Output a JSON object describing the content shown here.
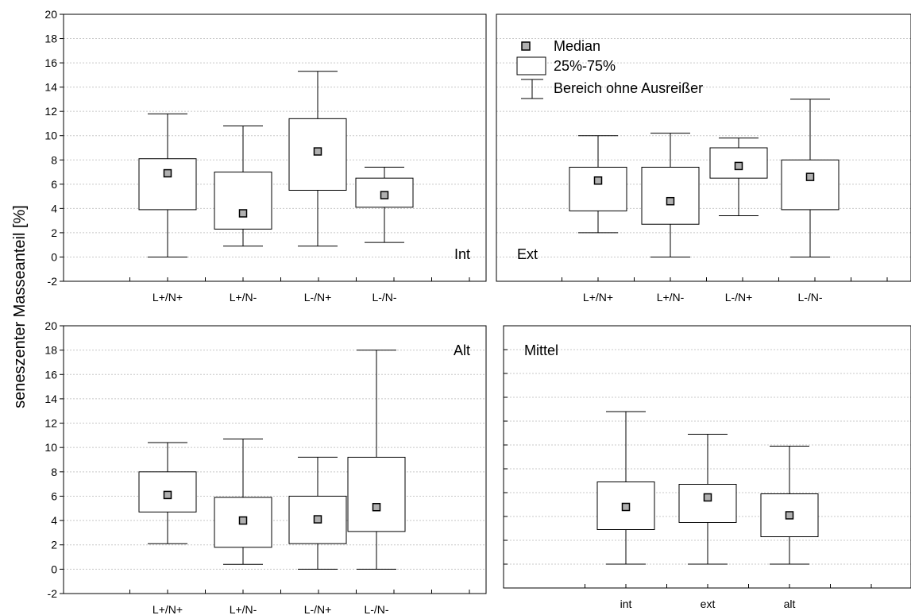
{
  "figure": {
    "ylabel": "seneszenter Masseanteil [%]"
  },
  "legend": {
    "median": "Median",
    "box": "25%-75%",
    "whisker": "Bereich ohne Ausreißer"
  },
  "chart_data": [
    {
      "type": "box",
      "label": "Int",
      "categories": [
        "L+/N+",
        "L+/N-",
        "L-/N+",
        "L-/N-"
      ],
      "ylim": [
        -2,
        20
      ],
      "yticks": [
        -2,
        0,
        2,
        4,
        6,
        8,
        10,
        12,
        14,
        16,
        18,
        20
      ],
      "grid": true,
      "boxes": [
        {
          "median": 6.9,
          "q1": 3.9,
          "q3": 8.1,
          "min": 0.0,
          "max": 11.8
        },
        {
          "median": 3.6,
          "q1": 2.3,
          "q3": 7.0,
          "min": 0.9,
          "max": 10.8
        },
        {
          "median": 8.7,
          "q1": 5.5,
          "q3": 11.4,
          "min": 0.9,
          "max": 15.3
        },
        {
          "median": 5.1,
          "q1": 4.1,
          "q3": 6.5,
          "min": 1.2,
          "max": 7.4
        }
      ]
    },
    {
      "type": "box",
      "label": "Ext",
      "categories": [
        "L+/N+",
        "L+/N-",
        "L-/N+",
        "L-/N-"
      ],
      "ylim": [
        -2,
        20
      ],
      "grid": true,
      "legend_position": "top-left",
      "boxes": [
        {
          "median": 6.3,
          "q1": 3.8,
          "q3": 7.4,
          "min": 2.0,
          "max": 10.0
        },
        {
          "median": 4.6,
          "q1": 2.7,
          "q3": 7.4,
          "min": 0.0,
          "max": 10.2
        },
        {
          "median": 7.5,
          "q1": 6.5,
          "q3": 9.0,
          "min": 3.4,
          "max": 9.8
        },
        {
          "median": 6.6,
          "q1": 3.9,
          "q3": 8.0,
          "min": 0.0,
          "max": 13.0
        }
      ]
    },
    {
      "type": "box",
      "label": "Alt",
      "categories": [
        "L+/N+",
        "L+/N-",
        "L-/N+",
        "L-/N-"
      ],
      "ylim": [
        -2,
        20
      ],
      "yticks": [
        -2,
        0,
        2,
        4,
        6,
        8,
        10,
        12,
        14,
        16,
        18,
        20
      ],
      "grid": true,
      "boxes": [
        {
          "median": 6.1,
          "q1": 4.7,
          "q3": 8.0,
          "min": 2.1,
          "max": 10.4
        },
        {
          "median": 4.0,
          "q1": 1.8,
          "q3": 5.9,
          "min": 0.4,
          "max": 10.7
        },
        {
          "median": 4.1,
          "q1": 2.1,
          "q3": 6.0,
          "min": 0.0,
          "max": 9.2
        },
        {
          "median": 5.1,
          "q1": 3.1,
          "q3": 9.2,
          "min": 0.0,
          "max": 18.0
        }
      ]
    },
    {
      "type": "box",
      "label": "Mittel",
      "categories": [
        "int",
        "ext",
        "alt"
      ],
      "ylim": [
        -2,
        20
      ],
      "grid": true,
      "boxes": [
        {
          "median": 4.8,
          "q1": 2.9,
          "q3": 6.9,
          "min": 0.0,
          "max": 12.8
        },
        {
          "median": 5.6,
          "q1": 3.5,
          "q3": 6.7,
          "min": 0.0,
          "max": 10.9
        },
        {
          "median": 4.1,
          "q1": 2.3,
          "q3": 5.9,
          "min": 0.0,
          "max": 9.9
        }
      ]
    }
  ]
}
